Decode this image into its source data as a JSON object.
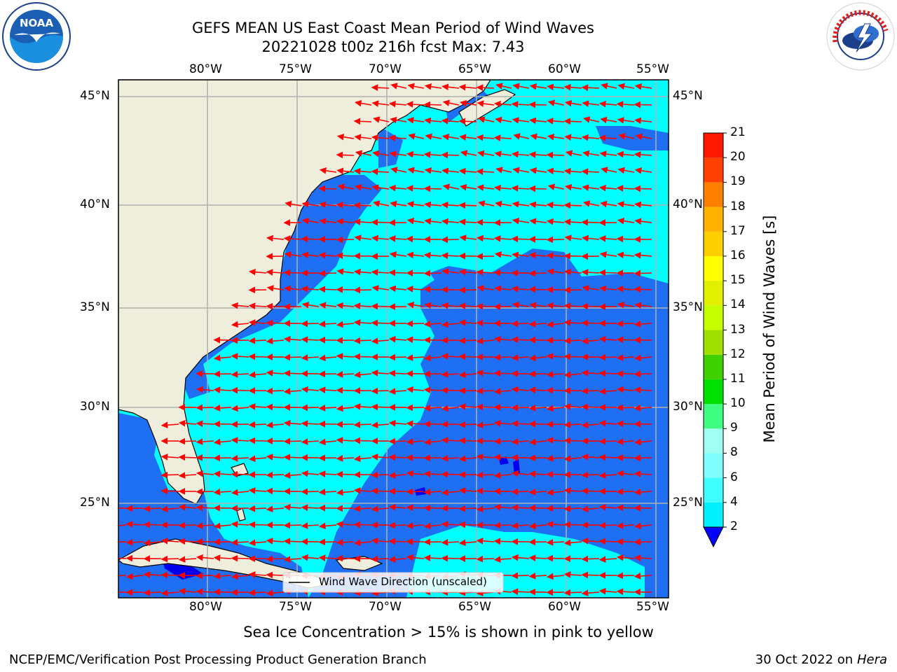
{
  "header": {
    "title_line1": "GEFS MEAN US East Coast Mean Period of Wind Waves",
    "title_line2": "20221028 t00z 216h fcst   Max: 7.43"
  },
  "logos": {
    "left_text": "NOAA",
    "left_ring_text": "NATIONAL OCEANIC AND ATMOSPHERIC ADMINISTRATION · U.S. DEPARTMENT OF COMMERCE",
    "right_ring_text": "NATIONAL WEATHER SERVICE"
  },
  "map": {
    "lon_labels_top": [
      "80°W",
      "75°W",
      "70°W",
      "65°W",
      "60°W",
      "55°W"
    ],
    "lon_labels_bottom": [
      "80°W",
      "75°W",
      "70°W",
      "65°W",
      "60°W",
      "55°W"
    ],
    "lat_labels_left": [
      "45°N",
      "40°N",
      "35°N",
      "30°N",
      "25°N"
    ],
    "lat_labels_right": [
      "45°N",
      "40°N",
      "35°N",
      "30°N",
      "25°N"
    ],
    "legend_label": "Wind Wave Direction (unscaled)",
    "colors": {
      "land": "#efeedd",
      "band_2_4": "#1e6ff3",
      "band_4_6": "#00ffff",
      "band_6_7": "#40ffff",
      "band_7_8": "#80ffff",
      "below_2": "#0000ee",
      "arrow": "#ff0000",
      "grid": "#b0b0b0"
    }
  },
  "colorbar": {
    "label": "Mean Period of Wind Waves [s]",
    "ticks": [
      "2",
      "4",
      "6",
      "8",
      "9",
      "10",
      "11",
      "12",
      "13",
      "14",
      "15",
      "16",
      "17",
      "18",
      "19",
      "20",
      "21"
    ],
    "colors": [
      "#0044ff",
      "#00f0ff",
      "#40ffff",
      "#80ffff",
      "#a0fff0",
      "#40ff80",
      "#00e000",
      "#40d000",
      "#a0e000",
      "#c8ff00",
      "#e0f000",
      "#ffff00",
      "#ffd000",
      "#ffb000",
      "#ff8000",
      "#ff4000",
      "#ff1800",
      "#ff0000"
    ],
    "extend_below_color": "#0000ff"
  },
  "footer": {
    "note": "Sea Ice Concentration > 15% is shown in pink to yellow",
    "credit": "NCEP/EMC/Verification Post Processing Product Generation Branch",
    "date": "30 Oct 2022 on ",
    "machine": "Hera"
  }
}
